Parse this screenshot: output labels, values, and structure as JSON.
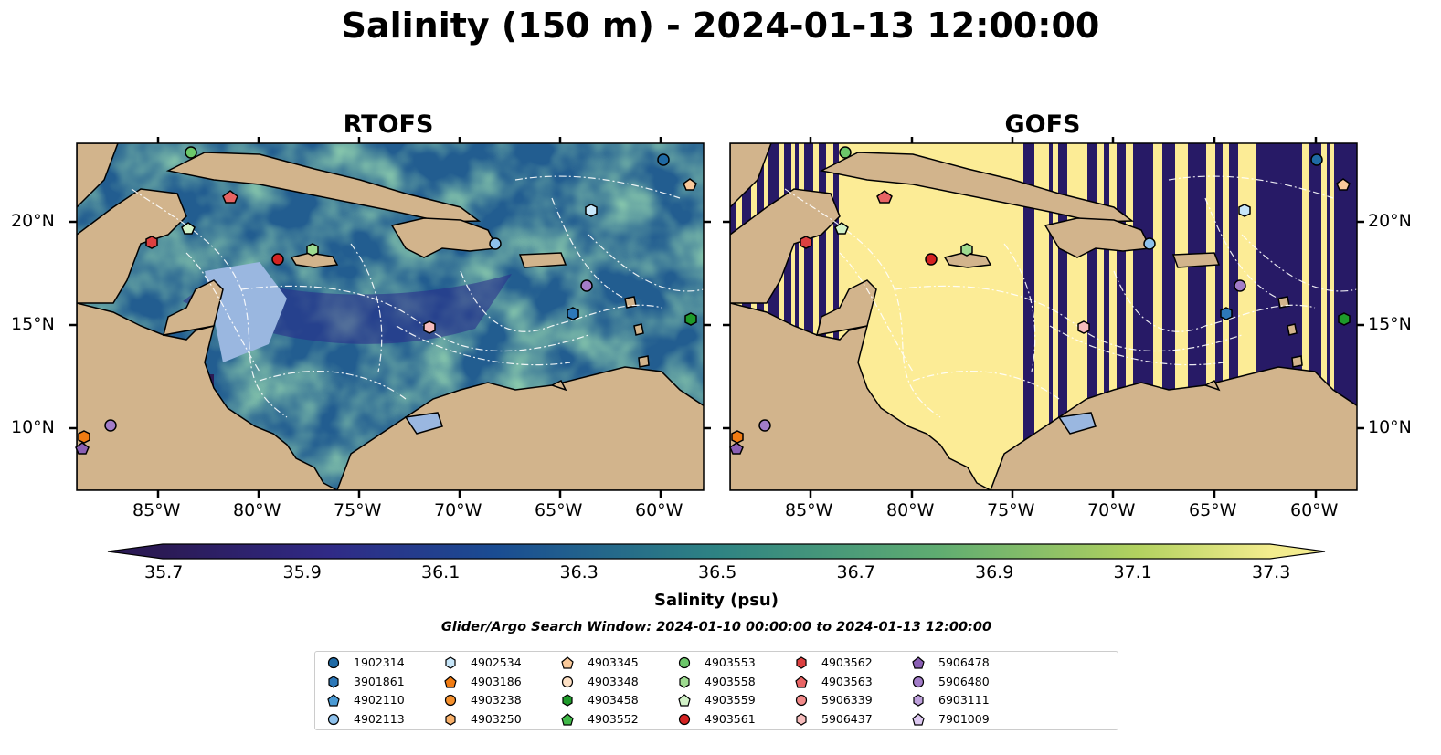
{
  "title": "Salinity (150 m) - 2024-01-13 12:00:00",
  "panels": [
    {
      "title": "RTOFS"
    },
    {
      "title": "GOFS"
    }
  ],
  "axes": {
    "lon_ticks": [
      "85°W",
      "80°W",
      "75°W",
      "70°W",
      "65°W",
      "60°W"
    ],
    "lat_ticks": [
      "20°N",
      "15°N",
      "10°N"
    ]
  },
  "colorbar": {
    "label": "Salinity (psu)",
    "ticks": [
      "35.7",
      "35.9",
      "36.1",
      "36.3",
      "36.5",
      "36.7",
      "36.9",
      "37.1",
      "37.3"
    ],
    "colormap": [
      "#2b1a55",
      "#302a86",
      "#263c96",
      "#1a4c92",
      "#155b8e",
      "#1b6889",
      "#257586",
      "#2e8383",
      "#3a907e",
      "#4a9e78",
      "#5fac71",
      "#78b968",
      "#93c561",
      "#b1d15f",
      "#d2df6a",
      "#f3ec8e"
    ]
  },
  "search_window": "Glider/Argo Search Window: 2024-01-10 00:00:00 to 2024-01-13 12:00:00",
  "legend": [
    {
      "label": "1902314",
      "marker": "circle",
      "color": "#1f6aa5"
    },
    {
      "label": "3901861",
      "marker": "hexagon",
      "color": "#2d78b8"
    },
    {
      "label": "4902110",
      "marker": "pentagon",
      "color": "#4a9ad4"
    },
    {
      "label": "4902113",
      "marker": "circle",
      "color": "#8ec1ec"
    },
    {
      "label": "4902534",
      "marker": "hexagon",
      "color": "#c7e6f9"
    },
    {
      "label": "4903186",
      "marker": "pentagon",
      "color": "#f07b12"
    },
    {
      "label": "4903238",
      "marker": "circle",
      "color": "#f5902d"
    },
    {
      "label": "4903250",
      "marker": "hexagon",
      "color": "#f8b06a"
    },
    {
      "label": "4903345",
      "marker": "pentagon",
      "color": "#f9c99a"
    },
    {
      "label": "4903348",
      "marker": "circle",
      "color": "#fde0c4"
    },
    {
      "label": "4903458",
      "marker": "hexagon",
      "color": "#1e9a2a"
    },
    {
      "label": "4903552",
      "marker": "pentagon",
      "color": "#40b848"
    },
    {
      "label": "4903553",
      "marker": "circle",
      "color": "#6cc76a"
    },
    {
      "label": "4903558",
      "marker": "hexagon",
      "color": "#9edb90"
    },
    {
      "label": "4903559",
      "marker": "pentagon",
      "color": "#d2f2c8"
    },
    {
      "label": "4903561",
      "marker": "circle",
      "color": "#d42322"
    },
    {
      "label": "4903562",
      "marker": "hexagon",
      "color": "#dc4040"
    },
    {
      "label": "4903563",
      "marker": "pentagon",
      "color": "#e86464"
    },
    {
      "label": "5906339",
      "marker": "circle",
      "color": "#f28a8a"
    },
    {
      "label": "5906437",
      "marker": "hexagon",
      "color": "#f6bcbc"
    },
    {
      "label": "5906478",
      "marker": "pentagon",
      "color": "#8a5fb4"
    },
    {
      "label": "5906480",
      "marker": "circle",
      "color": "#a27cc8"
    },
    {
      "label": "6903111",
      "marker": "hexagon",
      "color": "#bea0dc"
    },
    {
      "label": "7901009",
      "marker": "pentagon",
      "color": "#dcc8f0"
    }
  ]
}
